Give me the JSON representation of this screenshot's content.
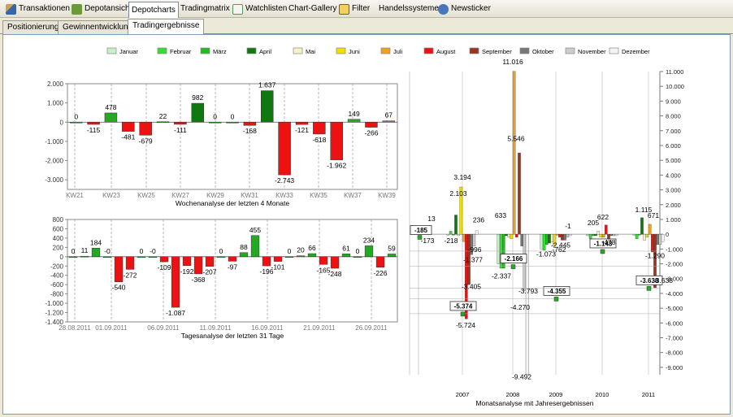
{
  "toolbar": {
    "items": [
      {
        "label": "Transaktionen",
        "icon": "pencil-icon"
      },
      {
        "label": "Depotansicht",
        "icon": "puzzle-icon"
      },
      {
        "label": "Depotcharts",
        "icon": "",
        "active": true
      },
      {
        "label": "Tradingmatrix",
        "icon": ""
      },
      {
        "label": "Watchlisten",
        "icon": "list-icon"
      },
      {
        "label": "Chart-Gallery",
        "icon": ""
      },
      {
        "label": "Filter",
        "icon": "filter-icon"
      },
      {
        "label": "Handelssysteme",
        "icon": ""
      },
      {
        "label": "Newsticker",
        "icon": "news-icon"
      }
    ]
  },
  "subtabs": [
    "Positionierung",
    "Gewinnentwicklung",
    "Tradingergebnisse"
  ],
  "legend": [
    {
      "label": "Januar",
      "color": "#c8f0c8"
    },
    {
      "label": "Februar",
      "color": "#33dd33"
    },
    {
      "label": "März",
      "color": "#22bb22"
    },
    {
      "label": "April",
      "color": "#117711"
    },
    {
      "label": "Mai",
      "color": "#f8f0c8"
    },
    {
      "label": "Juni",
      "color": "#f0e000"
    },
    {
      "label": "Juli",
      "color": "#f0a020"
    },
    {
      "label": "August",
      "color": "#ee1111"
    },
    {
      "label": "September",
      "color": "#993322"
    },
    {
      "label": "Oktober",
      "color": "#777777"
    },
    {
      "label": "November",
      "color": "#cccccc"
    },
    {
      "label": "Dezember",
      "color": "#f4f4f4"
    }
  ],
  "chart_data": [
    {
      "type": "bar",
      "xlabel": "Wochenanalyse der letzten 4 Monate",
      "ylim": [
        -3500,
        2000
      ],
      "yticks": [
        2000,
        1000,
        0,
        -1000,
        -2000,
        -3000
      ],
      "yticklabels": [
        "2.000",
        "1.000",
        "0",
        "-1.000",
        "-2.000",
        "-3.000"
      ],
      "tick_labels": [
        "KW21",
        "KW23",
        "KW25",
        "KW27",
        "KW29",
        "KW31",
        "KW33",
        "KW35",
        "KW37",
        "KW39"
      ],
      "values": [
        0,
        -115,
        478,
        -481,
        -679,
        22,
        -111,
        982,
        0,
        0,
        -168,
        1637,
        -2743,
        -121,
        -618,
        -1962,
        149,
        -266,
        67
      ],
      "data_labels": [
        "0",
        "-115",
        "478",
        "-481",
        "-679",
        "22",
        "-111",
        "982",
        "0",
        "0",
        "-168",
        "1.637",
        "-2.743",
        "-121",
        "-618",
        "-1.962",
        "149",
        "-266",
        "67"
      ]
    },
    {
      "type": "bar",
      "xlabel": "Tagesanalyse der letzten 31 Tage",
      "ylim": [
        -1400,
        800
      ],
      "yticks": [
        800,
        600,
        400,
        200,
        0,
        -200,
        -400,
        -600,
        -800,
        -1000,
        -1200,
        -1400
      ],
      "yticklabels": [
        "800",
        "600",
        "400",
        "200",
        "0",
        "-200",
        "-400",
        "-600",
        "-800",
        "-1.000",
        "-1.200",
        "-1.400"
      ],
      "tick_labels": [
        "28.08.2011",
        "01.09.2011",
        "06.09.2011",
        "11.09.2011",
        "16.09.2011",
        "21.09.2011",
        "26.09.2011"
      ],
      "values": [
        0,
        11,
        184,
        0,
        -540,
        -272,
        0,
        0,
        -109,
        -1087,
        -192,
        -368,
        -207,
        0,
        -97,
        88,
        455,
        -196,
        -101,
        0,
        20,
        66,
        -165,
        -248,
        61,
        0,
        234,
        -226,
        59
      ],
      "data_labels": [
        "0",
        "11",
        "184",
        "-0",
        "-540",
        "-272",
        "0",
        "-0",
        "-109",
        "-1.087",
        "-192",
        "-368",
        "-207",
        "0",
        "-97",
        "88",
        "455",
        "-196",
        "-101",
        "0",
        "20",
        "66",
        "-165",
        "-248",
        "61",
        "0",
        "234",
        "-226",
        "59"
      ]
    },
    {
      "type": "bar",
      "xlabel": "Monatsanalyse mit Jahresergebnissen",
      "ylim": [
        -9500,
        11000
      ],
      "yticks": [
        11000,
        10000,
        9000,
        8000,
        7000,
        6000,
        5000,
        4000,
        3000,
        2000,
        1000,
        0,
        -1000,
        -2000,
        -3000,
        -4000,
        -5000,
        -6000,
        -7000,
        -8000,
        -9000
      ],
      "yticklabels": [
        "11.000",
        "10.000",
        "9.000",
        "8.000",
        "7.000",
        "6.000",
        "5.000",
        "4.000",
        "3.000",
        "2.000",
        "1.000",
        "0",
        "-1.000",
        "-2.000",
        "-3.000",
        "-4.000",
        "-5.000",
        "-6.000",
        "-7.000",
        "-8.000",
        "-9.000"
      ],
      "categories": [
        "2007",
        "2008",
        "2009",
        "2010",
        "2011"
      ],
      "series": [
        {
          "name": "Januar",
          "values": [
            0,
            -2000,
            -1000,
            -100,
            0
          ]
        },
        {
          "name": "Februar",
          "values": [
            200,
            -2300,
            -1073,
            -300,
            -300
          ]
        },
        {
          "name": "März",
          "values": [
            0,
            -2300,
            -700,
            -100,
            0
          ]
        },
        {
          "name": "April",
          "values": [
            1300,
            -100,
            -600,
            -100,
            1115
          ]
        },
        {
          "name": "Mai",
          "values": [
            -100,
            -200,
            -500,
            200,
            -400
          ]
        },
        {
          "name": "Juni",
          "values": [
            3194,
            -300,
            -762,
            -200,
            -200
          ]
        },
        {
          "name": "Juli",
          "values": [
            -500,
            11016,
            -1,
            -200,
            671
          ]
        },
        {
          "name": "August",
          "values": [
            -5724,
            -200,
            -200,
            622,
            -1200
          ]
        },
        {
          "name": "September",
          "values": [
            -3405,
            5500,
            -400,
            -400,
            -3638
          ]
        },
        {
          "name": "Oktober",
          "values": [
            -1377,
            -800,
            -400,
            -100,
            -700
          ]
        },
        {
          "name": "November",
          "values": [
            -800,
            -3793,
            -200,
            -100,
            -700
          ]
        },
        {
          "name": "Dezember",
          "values": [
            236,
            -9492,
            -100,
            -100,
            -500
          ]
        }
      ],
      "year_results": [
        -5374,
        -2166,
        -4355,
        -1143,
        -3638
      ],
      "year_result_labels": [
        "-5.374",
        "-2.166",
        "-4.355",
        "-1.143",
        "-3.638"
      ],
      "side_results": [
        -185
      ],
      "side_result_labels": [
        "-185"
      ],
      "side_labels": [
        "13",
        "-173",
        "-218"
      ],
      "data_labels": [
        {
          "text": "3.194"
        },
        {
          "text": "2.103"
        },
        {
          "text": "236"
        },
        {
          "text": "-996"
        },
        {
          "text": "-1.377"
        },
        {
          "text": "-3.405"
        },
        {
          "text": "-5.724"
        },
        {
          "text": "633"
        },
        {
          "text": "11.016"
        },
        {
          "text": "5.546"
        },
        {
          "text": "-2.337"
        },
        {
          "text": "-4.270"
        },
        {
          "text": "-3.793"
        },
        {
          "text": "-9.492"
        },
        {
          "text": "-1.073"
        },
        {
          "text": "-762"
        },
        {
          "text": "-1"
        },
        {
          "text": "-2.445"
        },
        {
          "text": "622"
        },
        {
          "text": "205"
        },
        {
          "text": "-478"
        },
        {
          "text": "1.115"
        },
        {
          "text": "671"
        },
        {
          "text": "-1.290"
        },
        {
          "text": "-3.638"
        }
      ]
    }
  ]
}
